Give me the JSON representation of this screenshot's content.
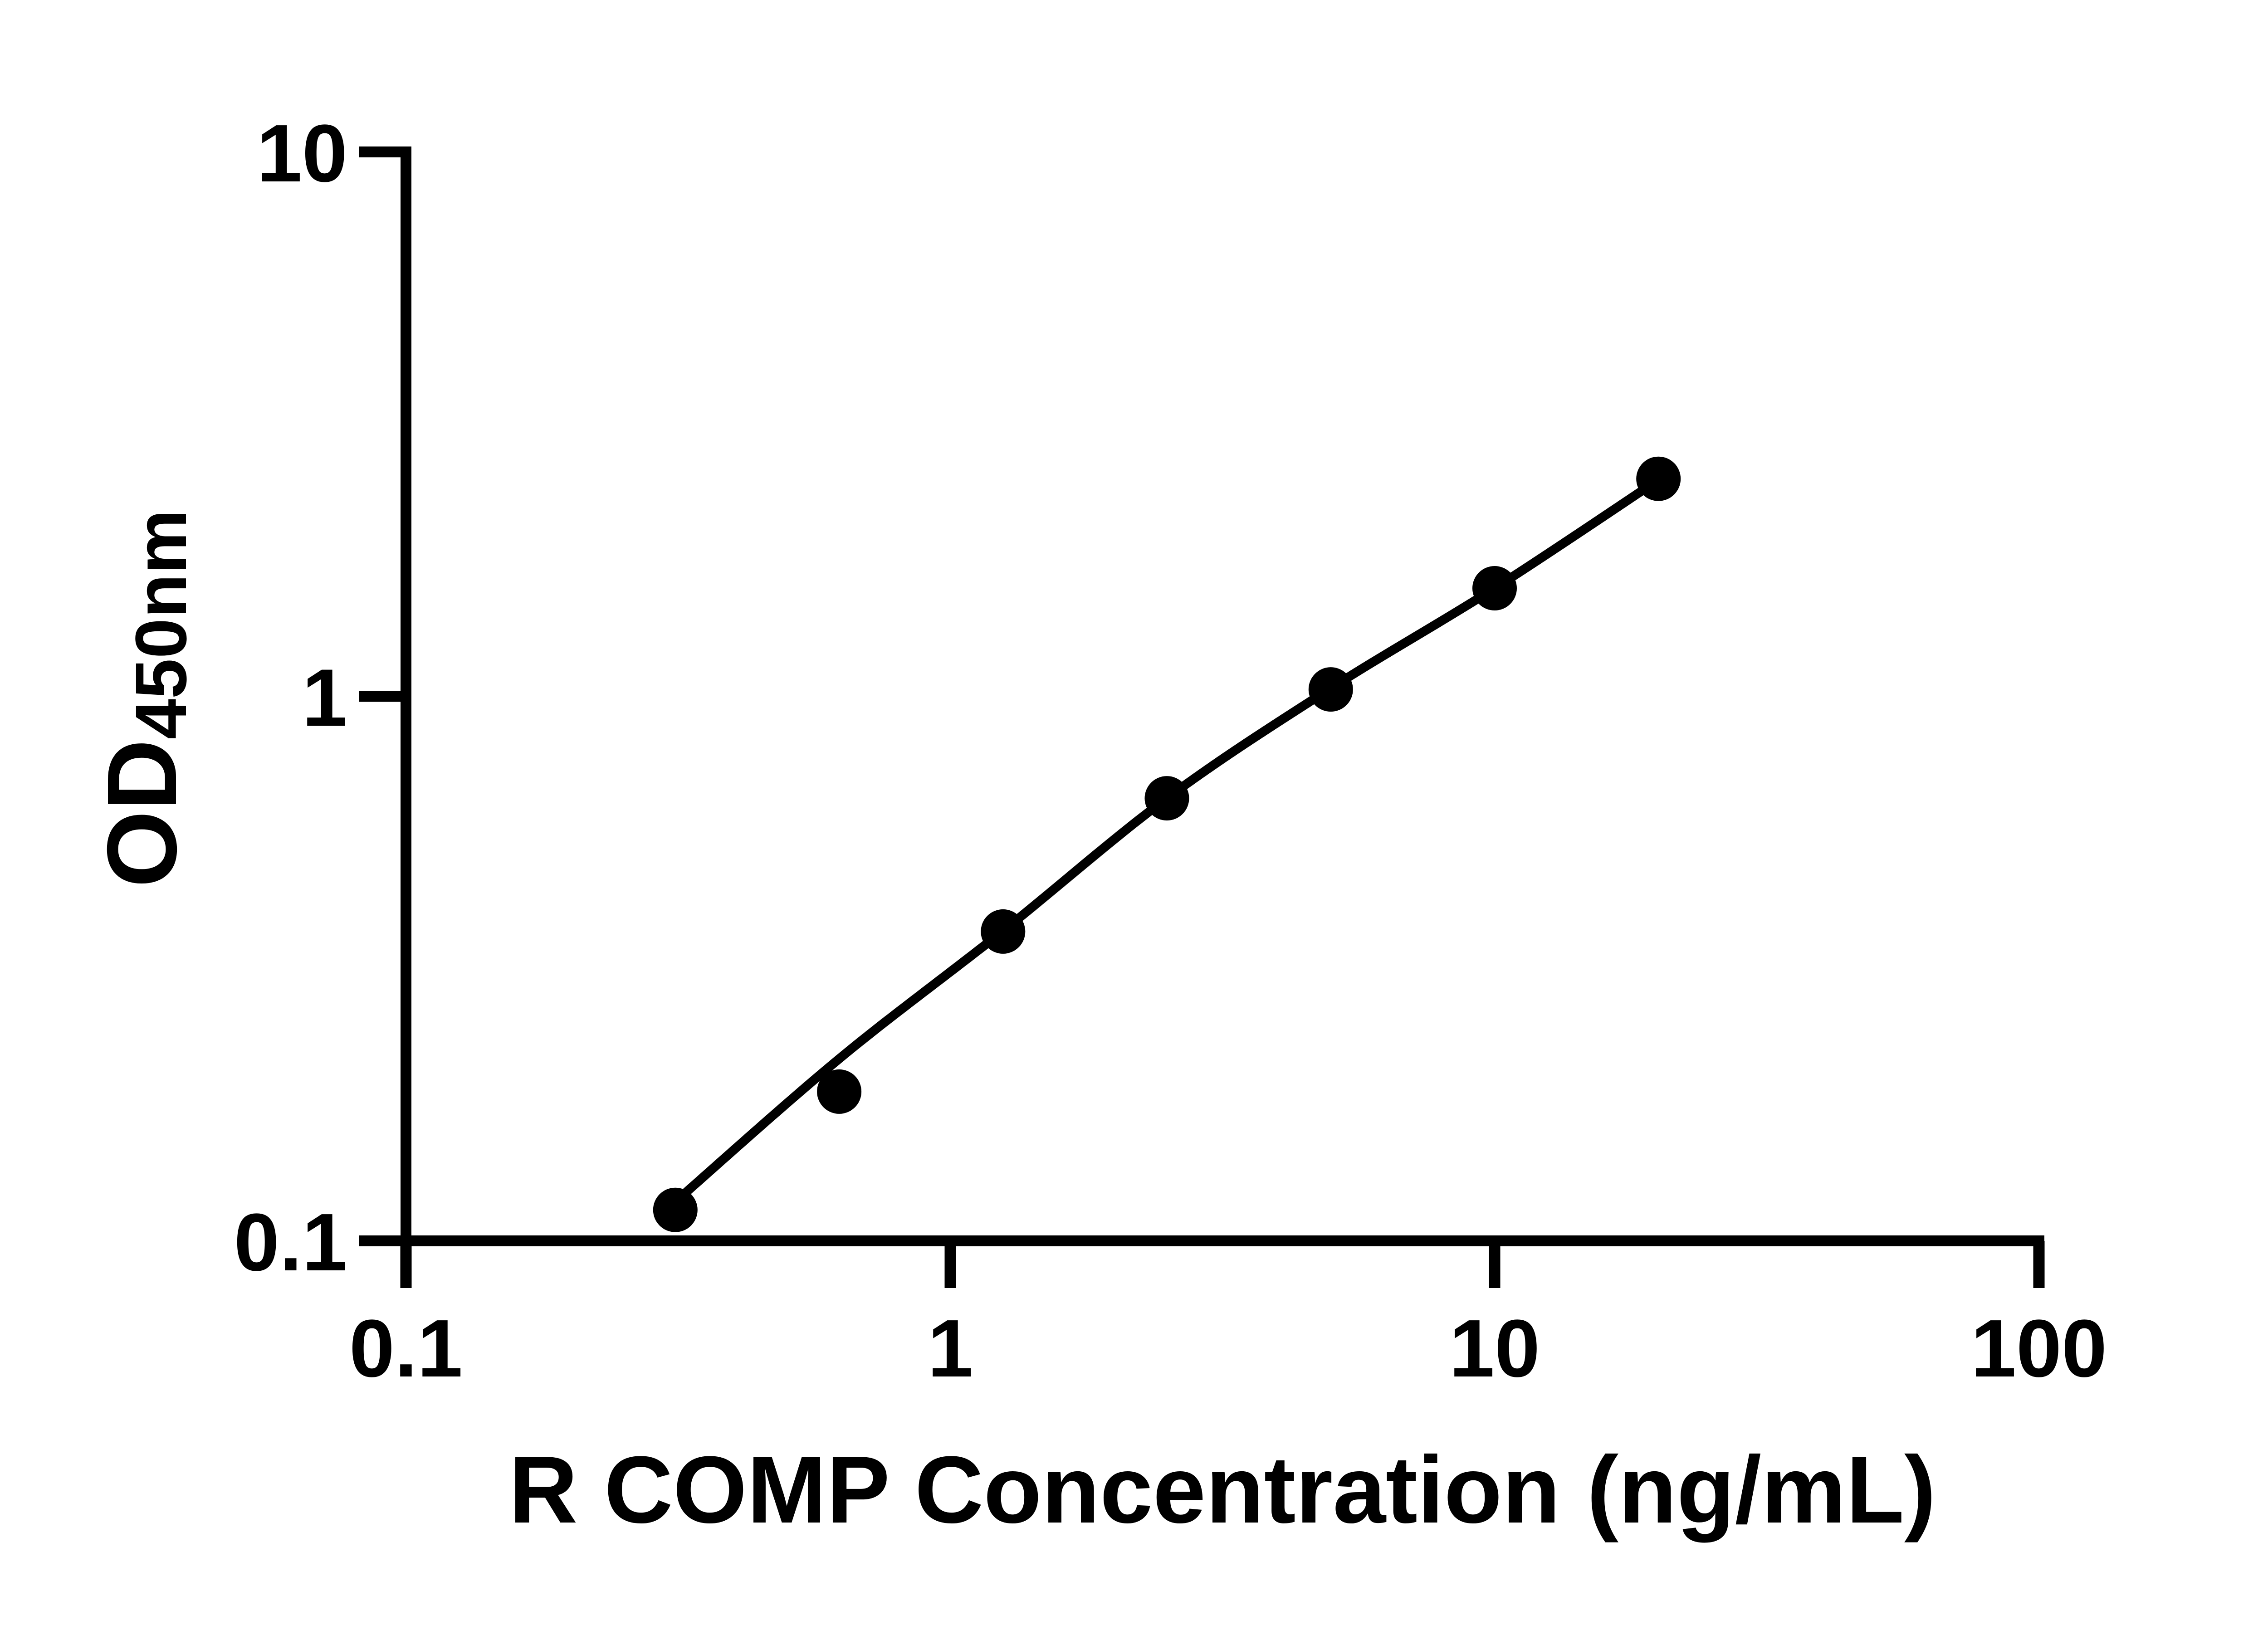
{
  "figure": {
    "background_color": "#ffffff",
    "ink_color": "#000000"
  },
  "chart_data": {
    "type": "scatter",
    "title": "",
    "xlabel": "R COMP Concentration (ng/mL)",
    "ylabel": "OD450nm",
    "ylabel_main": "OD",
    "ylabel_sub": "450nm",
    "x_scale": "log",
    "y_scale": "log",
    "xlim": [
      0.1,
      100
    ],
    "ylim": [
      0.1,
      10
    ],
    "grid": false,
    "legend": false,
    "x_ticks": [
      {
        "value": 0.1,
        "label": "0.1"
      },
      {
        "value": 1,
        "label": "1"
      },
      {
        "value": 10,
        "label": "10"
      },
      {
        "value": 100,
        "label": "100"
      }
    ],
    "y_ticks": [
      {
        "value": 0.1,
        "label": "0.1"
      },
      {
        "value": 1,
        "label": "1"
      },
      {
        "value": 10,
        "label": "10"
      }
    ],
    "series": [
      {
        "name": "R COMP standards",
        "marker": "filled-circle",
        "color": "#000000",
        "points": [
          {
            "x": 0.3125,
            "y": 0.114
          },
          {
            "x": 0.625,
            "y": 0.188
          },
          {
            "x": 1.25,
            "y": 0.37
          },
          {
            "x": 2.5,
            "y": 0.65
          },
          {
            "x": 5,
            "y": 1.03
          },
          {
            "x": 10,
            "y": 1.58
          },
          {
            "x": 20,
            "y": 2.51
          }
        ]
      }
    ],
    "trend_curve": {
      "name": "standard curve fit line",
      "color": "#000000",
      "anchors": [
        {
          "x": 0.3125,
          "y": 0.118
        },
        {
          "x": 0.625,
          "y": 0.216
        },
        {
          "x": 1.25,
          "y": 0.371
        },
        {
          "x": 2.5,
          "y": 0.65
        },
        {
          "x": 5,
          "y": 1.035
        },
        {
          "x": 10,
          "y": 1.58
        },
        {
          "x": 20,
          "y": 2.5
        }
      ]
    }
  }
}
